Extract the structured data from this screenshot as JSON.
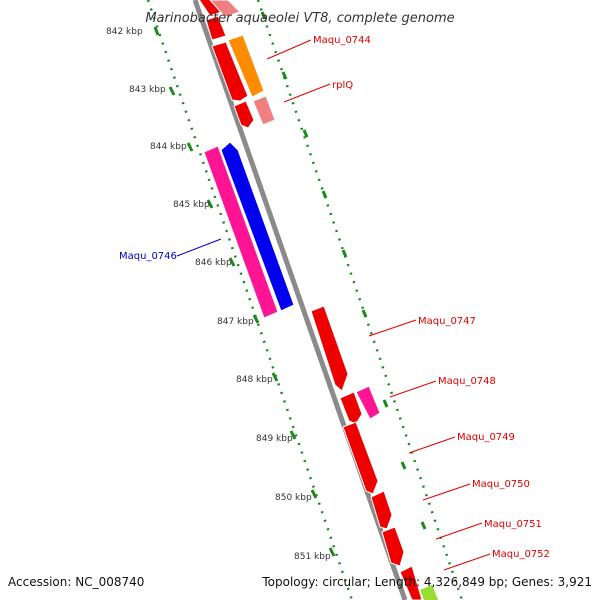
{
  "header": {
    "title": "Marinobacter aquaeolei VT8, complete genome"
  },
  "footer": {
    "accession": "Accession: NC_008740",
    "summary": "Topology: circular; Length: 4,326,849 bp; Genes: 3,921"
  },
  "colors": {
    "backbone": "#888888",
    "tick": "#1a8a1a",
    "red_gene": "#ee0000",
    "pink_gene": "#ff1493",
    "blue_gene": "#0000ee",
    "orange_gene": "#ff8c00",
    "light_red_gene": "#f08080",
    "light_green_gene": "#99dd33",
    "label_red": "#dd0000",
    "label_blue": "#0000cc"
  },
  "kbp_markers": [
    "842 kbp",
    "843 kbp",
    "844 kbp",
    "845 kbp",
    "846 kbp",
    "847 kbp",
    "848 kbp",
    "849 kbp",
    "850 kbp",
    "851 kbp"
  ],
  "gene_labels": [
    "Maqu_0744",
    "rplQ",
    "Maqu_0746",
    "Maqu_0747",
    "Maqu_0748",
    "Maqu_0749",
    "Maqu_0750",
    "Maqu_0751",
    "Maqu_0752"
  ]
}
